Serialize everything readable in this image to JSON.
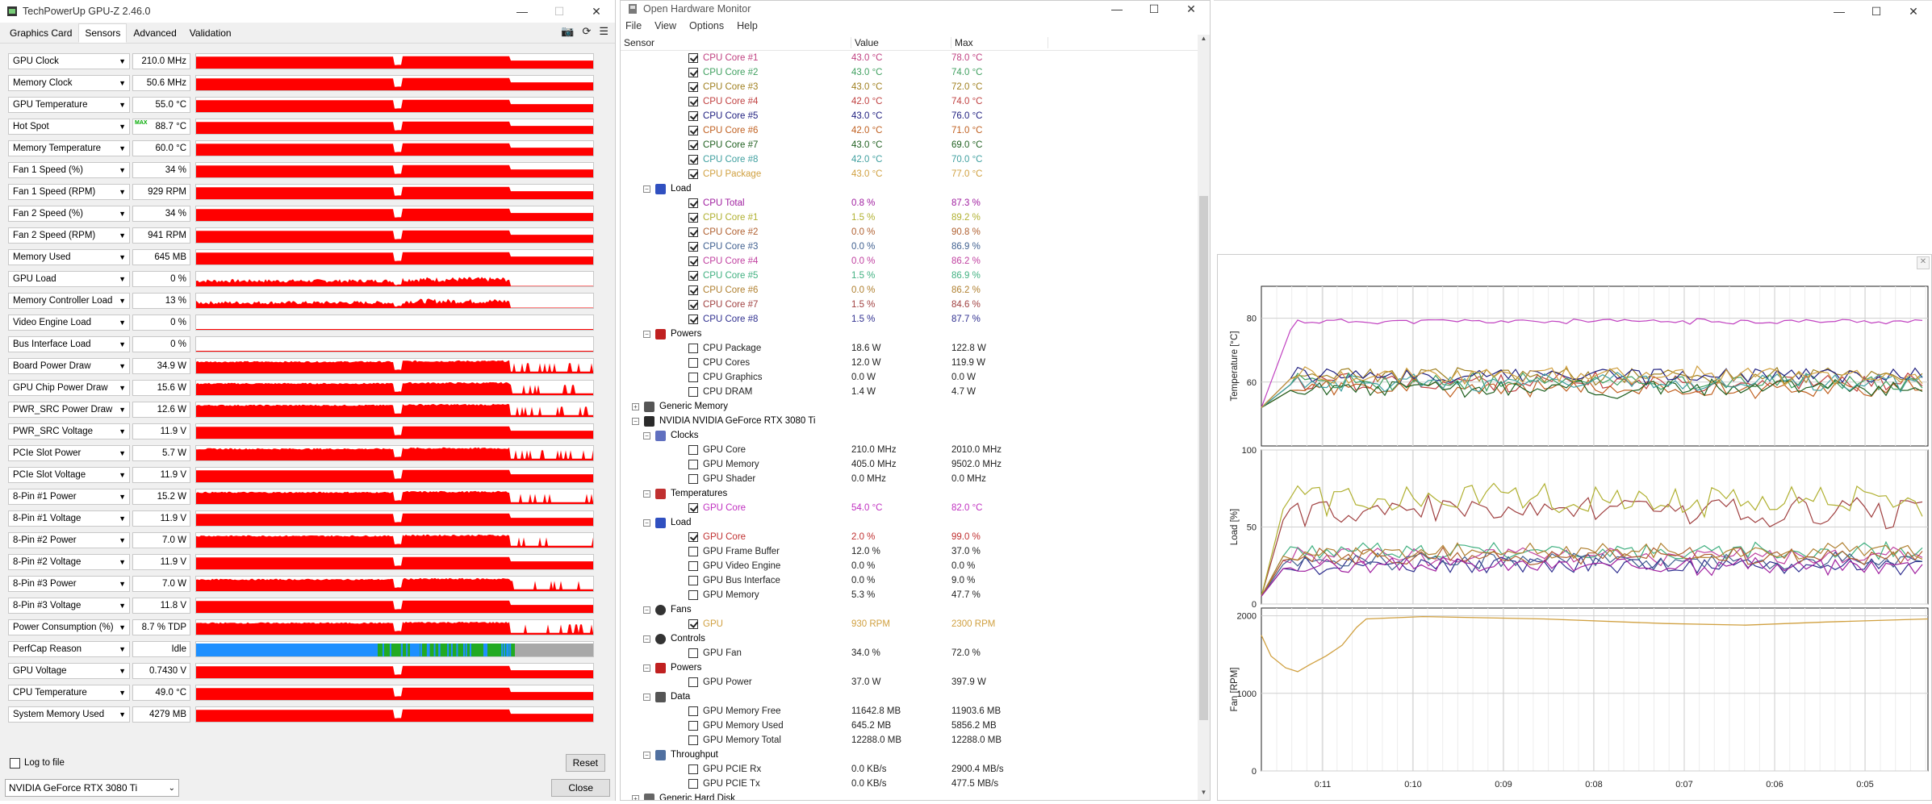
{
  "gpuz": {
    "title": "TechPowerUp GPU-Z 2.46.0",
    "tabs": [
      "Graphics Card",
      "Sensors",
      "Advanced",
      "Validation"
    ],
    "active_tab": "Sensors",
    "sensors": [
      {
        "name": "GPU Clock",
        "value": "210.0 MHz"
      },
      {
        "name": "Memory Clock",
        "value": "50.6 MHz"
      },
      {
        "name": "GPU Temperature",
        "value": "55.0 °C"
      },
      {
        "name": "Hot Spot",
        "value": "88.7 °C",
        "tag": "MAX"
      },
      {
        "name": "Memory Temperature",
        "value": "60.0 °C"
      },
      {
        "name": "Fan 1 Speed (%)",
        "value": "34 %"
      },
      {
        "name": "Fan 1 Speed (RPM)",
        "value": "929 RPM"
      },
      {
        "name": "Fan 2 Speed (%)",
        "value": "34 %"
      },
      {
        "name": "Fan 2 Speed (RPM)",
        "value": "941 RPM"
      },
      {
        "name": "Memory Used",
        "value": "645 MB"
      },
      {
        "name": "GPU Load",
        "value": "0 %"
      },
      {
        "name": "Memory Controller Load",
        "value": "13 %"
      },
      {
        "name": "Video Engine Load",
        "value": "0 %"
      },
      {
        "name": "Bus Interface Load",
        "value": "0 %"
      },
      {
        "name": "Board Power Draw",
        "value": "34.9 W"
      },
      {
        "name": "GPU Chip Power Draw",
        "value": "15.6 W"
      },
      {
        "name": "PWR_SRC Power Draw",
        "value": "12.6 W"
      },
      {
        "name": "PWR_SRC Voltage",
        "value": "11.9 V"
      },
      {
        "name": "PCIe Slot Power",
        "value": "5.7 W"
      },
      {
        "name": "PCIe Slot Voltage",
        "value": "11.9 V"
      },
      {
        "name": "8-Pin #1 Power",
        "value": "15.2 W"
      },
      {
        "name": "8-Pin #1 Voltage",
        "value": "11.9 V"
      },
      {
        "name": "8-Pin #2 Power",
        "value": "7.0 W"
      },
      {
        "name": "8-Pin #2 Voltage",
        "value": "11.9 V"
      },
      {
        "name": "8-Pin #3 Power",
        "value": "7.0 W"
      },
      {
        "name": "8-Pin #3 Voltage",
        "value": "11.8 V"
      },
      {
        "name": "Power Consumption (%)",
        "value": "8.7 % TDP"
      },
      {
        "name": "PerfCap Reason",
        "value": "Idle"
      },
      {
        "name": "GPU Voltage",
        "value": "0.7430 V"
      },
      {
        "name": "CPU Temperature",
        "value": "49.0 °C"
      },
      {
        "name": "System Memory Used",
        "value": "4279 MB"
      }
    ],
    "log_to_file": "Log to file",
    "reset": "Reset",
    "device": "NVIDIA GeForce RTX 3080 Ti",
    "close": "Close",
    "graph_color": "#ff0000"
  },
  "ohm": {
    "title": "Open Hardware Monitor",
    "menu": [
      "File",
      "View",
      "Options",
      "Help"
    ],
    "columns": [
      "Sensor",
      "Value",
      "Max"
    ],
    "rows": [
      {
        "lvl": 3,
        "chk": true,
        "label": "CPU Core #1",
        "value": "43.0 °C",
        "max": "78.0 °C",
        "color": "#c04080"
      },
      {
        "lvl": 3,
        "chk": true,
        "label": "CPU Core #2",
        "value": "43.0 °C",
        "max": "74.0 °C",
        "color": "#40a060"
      },
      {
        "lvl": 3,
        "chk": true,
        "label": "CPU Core #3",
        "value": "43.0 °C",
        "max": "72.0 °C",
        "color": "#a08020"
      },
      {
        "lvl": 3,
        "chk": true,
        "label": "CPU Core #4",
        "value": "42.0 °C",
        "max": "74.0 °C",
        "color": "#c04040"
      },
      {
        "lvl": 3,
        "chk": true,
        "label": "CPU Core #5",
        "value": "43.0 °C",
        "max": "76.0 °C",
        "color": "#202080"
      },
      {
        "lvl": 3,
        "chk": true,
        "label": "CPU Core #6",
        "value": "42.0 °C",
        "max": "71.0 °C",
        "color": "#c06020"
      },
      {
        "lvl": 3,
        "chk": true,
        "label": "CPU Core #7",
        "value": "43.0 °C",
        "max": "69.0 °C",
        "color": "#206020"
      },
      {
        "lvl": 3,
        "chk": true,
        "label": "CPU Core #8",
        "value": "42.0 °C",
        "max": "70.0 °C",
        "color": "#40a0a0"
      },
      {
        "lvl": 3,
        "chk": true,
        "label": "CPU Package",
        "value": "43.0 °C",
        "max": "77.0 °C",
        "color": "#d0a040"
      },
      {
        "lvl": 2,
        "group": "Load",
        "icon": "load-icon"
      },
      {
        "lvl": 3,
        "chk": true,
        "label": "CPU Total",
        "value": "0.8 %",
        "max": "87.3 %",
        "color": "#a020a0"
      },
      {
        "lvl": 3,
        "chk": true,
        "label": "CPU Core #1",
        "value": "1.5 %",
        "max": "89.2 %",
        "color": "#b0b030"
      },
      {
        "lvl": 3,
        "chk": true,
        "label": "CPU Core #2",
        "value": "0.0 %",
        "max": "90.8 %",
        "color": "#b06030"
      },
      {
        "lvl": 3,
        "chk": true,
        "label": "CPU Core #3",
        "value": "0.0 %",
        "max": "86.9 %",
        "color": "#406090"
      },
      {
        "lvl": 3,
        "chk": true,
        "label": "CPU Core #4",
        "value": "0.0 %",
        "max": "86.2 %",
        "color": "#c040a0"
      },
      {
        "lvl": 3,
        "chk": true,
        "label": "CPU Core #5",
        "value": "1.5 %",
        "max": "86.9 %",
        "color": "#40b080"
      },
      {
        "lvl": 3,
        "chk": true,
        "label": "CPU Core #6",
        "value": "0.0 %",
        "max": "86.2 %",
        "color": "#b08030"
      },
      {
        "lvl": 3,
        "chk": true,
        "label": "CPU Core #7",
        "value": "1.5 %",
        "max": "84.6 %",
        "color": "#a04040"
      },
      {
        "lvl": 3,
        "chk": true,
        "label": "CPU Core #8",
        "value": "1.5 %",
        "max": "87.7 %",
        "color": "#303090"
      },
      {
        "lvl": 2,
        "group": "Powers",
        "icon": "power-icon"
      },
      {
        "lvl": 3,
        "chk": false,
        "label": "CPU Package",
        "value": "18.6 W",
        "max": "122.8 W",
        "color": "#222222"
      },
      {
        "lvl": 3,
        "chk": false,
        "label": "CPU Cores",
        "value": "12.0 W",
        "max": "119.9 W",
        "color": "#222222"
      },
      {
        "lvl": 3,
        "chk": false,
        "label": "CPU Graphics",
        "value": "0.0 W",
        "max": "0.0 W",
        "color": "#222222"
      },
      {
        "lvl": 3,
        "chk": false,
        "label": "CPU DRAM",
        "value": "1.4 W",
        "max": "4.7 W",
        "color": "#222222"
      },
      {
        "lvl": 1,
        "group": "Generic Memory",
        "icon": "memory-icon",
        "collapsed": true
      },
      {
        "lvl": 1,
        "group": "NVIDIA NVIDIA GeForce RTX 3080 Ti",
        "icon": "gpu-icon"
      },
      {
        "lvl": 2,
        "group": "Clocks",
        "icon": "clock-icon"
      },
      {
        "lvl": 3,
        "chk": false,
        "label": "GPU Core",
        "value": "210.0 MHz",
        "max": "2010.0 MHz",
        "color": "#222222"
      },
      {
        "lvl": 3,
        "chk": false,
        "label": "GPU Memory",
        "value": "405.0 MHz",
        "max": "9502.0 MHz",
        "color": "#222222"
      },
      {
        "lvl": 3,
        "chk": false,
        "label": "GPU Shader",
        "value": "0.0 MHz",
        "max": "0.0 MHz",
        "color": "#222222"
      },
      {
        "lvl": 2,
        "group": "Temperatures",
        "icon": "thermometer-icon"
      },
      {
        "lvl": 3,
        "chk": true,
        "label": "GPU Core",
        "value": "54.0 °C",
        "max": "82.0 °C",
        "color": "#c030c0"
      },
      {
        "lvl": 2,
        "group": "Load",
        "icon": "load-icon"
      },
      {
        "lvl": 3,
        "chk": true,
        "label": "GPU Core",
        "value": "2.0 %",
        "max": "99.0 %",
        "color": "#c03030"
      },
      {
        "lvl": 3,
        "chk": false,
        "label": "GPU Frame Buffer",
        "value": "12.0 %",
        "max": "37.0 %",
        "color": "#222222"
      },
      {
        "lvl": 3,
        "chk": false,
        "label": "GPU Video Engine",
        "value": "0.0 %",
        "max": "0.0 %",
        "color": "#222222"
      },
      {
        "lvl": 3,
        "chk": false,
        "label": "GPU Bus Interface",
        "value": "0.0 %",
        "max": "9.0 %",
        "color": "#222222"
      },
      {
        "lvl": 3,
        "chk": false,
        "label": "GPU Memory",
        "value": "5.3 %",
        "max": "47.7 %",
        "color": "#222222"
      },
      {
        "lvl": 2,
        "group": "Fans",
        "icon": "fan-icon"
      },
      {
        "lvl": 3,
        "chk": true,
        "label": "GPU",
        "value": "930 RPM",
        "max": "2300 RPM",
        "color": "#d0a040"
      },
      {
        "lvl": 2,
        "group": "Controls",
        "icon": "control-icon"
      },
      {
        "lvl": 3,
        "chk": false,
        "label": "GPU Fan",
        "value": "34.0 %",
        "max": "72.0 %",
        "color": "#222222"
      },
      {
        "lvl": 2,
        "group": "Powers",
        "icon": "power-icon"
      },
      {
        "lvl": 3,
        "chk": false,
        "label": "GPU Power",
        "value": "37.0 W",
        "max": "397.9 W",
        "color": "#222222"
      },
      {
        "lvl": 2,
        "group": "Data",
        "icon": "data-icon"
      },
      {
        "lvl": 3,
        "chk": false,
        "label": "GPU Memory Free",
        "value": "11642.8 MB",
        "max": "11903.6 MB",
        "color": "#222222"
      },
      {
        "lvl": 3,
        "chk": false,
        "label": "GPU Memory Used",
        "value": "645.2 MB",
        "max": "5856.2 MB",
        "color": "#222222"
      },
      {
        "lvl": 3,
        "chk": false,
        "label": "GPU Memory Total",
        "value": "12288.0 MB",
        "max": "12288.0 MB",
        "color": "#222222"
      },
      {
        "lvl": 2,
        "group": "Throughput",
        "icon": "throughput-icon"
      },
      {
        "lvl": 3,
        "chk": false,
        "label": "GPU PCIE Rx",
        "value": "0.0 KB/s",
        "max": "2900.4 MB/s",
        "color": "#222222"
      },
      {
        "lvl": 3,
        "chk": false,
        "label": "GPU PCIE Tx",
        "value": "0.0 KB/s",
        "max": "477.5 MB/s",
        "color": "#222222"
      },
      {
        "lvl": 1,
        "group": "Generic Hard Disk",
        "icon": "disk-icon",
        "collapsed": true
      }
    ]
  },
  "chart_data": {
    "type": "line",
    "panels": [
      {
        "ylabel": "Temperature [°C]",
        "ylim": [
          40,
          90
        ],
        "ticks": [
          60,
          80
        ]
      },
      {
        "ylabel": "Load [%]",
        "ylim": [
          0,
          100
        ],
        "ticks": [
          0,
          50,
          100
        ]
      },
      {
        "ylabel": "Fan [RPM]",
        "ylim": [
          0,
          2100
        ],
        "ticks": [
          0,
          1000,
          2000
        ]
      }
    ],
    "x_ticks": [
      "0:11",
      "0:10",
      "0:09",
      "0:08",
      "0:07",
      "0:06",
      "0:05"
    ],
    "grid": true
  }
}
